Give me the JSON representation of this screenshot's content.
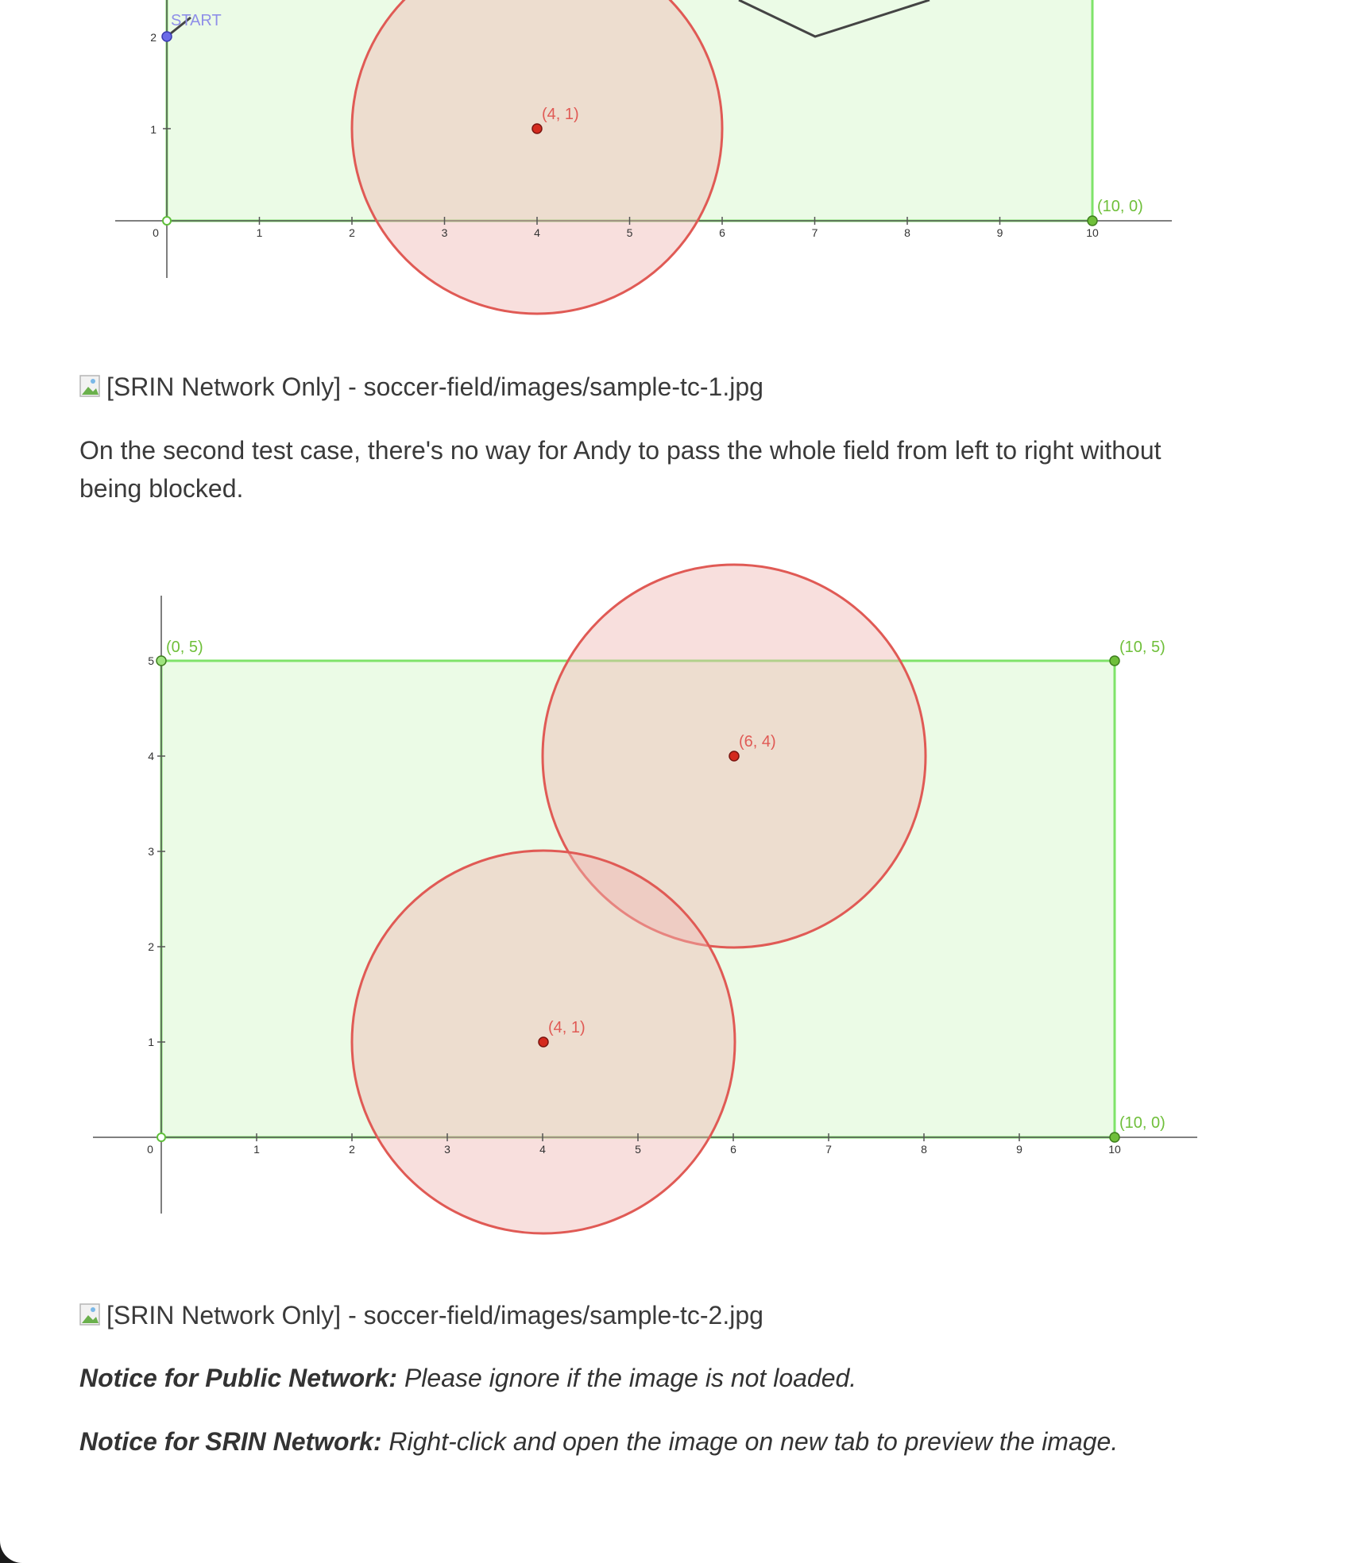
{
  "figure1": {
    "start_label": "START",
    "start_tick": "2",
    "tick_1": "1",
    "x_ticks": [
      "0",
      "1",
      "2",
      "3",
      "4",
      "5",
      "6",
      "7",
      "8",
      "9",
      "10"
    ],
    "circle_center_label": "(4, 1)",
    "corner_label": "(10, 0)"
  },
  "image_alt_1": "[SRIN Network Only] - soccer-field/images/sample-tc-1.jpg",
  "paragraph": "On the second test case, there's no way for Andy to pass the whole field from left to right without being blocked.",
  "figure2": {
    "y_ticks": [
      "1",
      "2",
      "3",
      "4",
      "5"
    ],
    "x_ticks": [
      "0",
      "1",
      "2",
      "3",
      "4",
      "5",
      "6",
      "7",
      "8",
      "9",
      "10"
    ],
    "corner_top_left": "(0, 5)",
    "corner_top_right": "(10, 5)",
    "corner_bottom_right": "(10, 0)",
    "circle_a_label": "(6, 4)",
    "circle_b_label": "(4, 1)"
  },
  "image_alt_2": "[SRIN Network Only] - soccer-field/images/sample-tc-2.jpg",
  "notice_public": {
    "label": "Notice for Public Network:",
    "text": " Please ignore if the image is not loaded."
  },
  "notice_srin": {
    "label": "Notice for SRIN Network:",
    "text": " Right-click and open the image on new tab to preview the image."
  },
  "colors": {
    "field_fill": "#ebfbe6",
    "field_stroke": "#7fe36a",
    "circle_fill": "#f5d3d3",
    "circle_stroke": "#e05a55",
    "point_red": "#d42a1e",
    "point_green": "#6fbf3a",
    "start_point": "#6b6be8"
  }
}
